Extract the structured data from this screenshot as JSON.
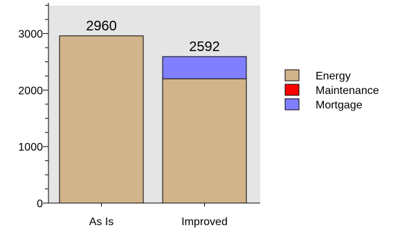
{
  "chart_data": {
    "type": "bar",
    "stacked": true,
    "categories": [
      "As Is",
      "Improved"
    ],
    "series": [
      {
        "name": "Energy",
        "color": "#d2b48c",
        "values": [
          2960,
          2200
        ]
      },
      {
        "name": "Maintenance",
        "color": "#ff0000",
        "values": [
          0,
          0
        ]
      },
      {
        "name": "Mortgage",
        "color": "#8080ff",
        "values": [
          0,
          392
        ]
      }
    ],
    "totals": [
      "2960",
      "2592"
    ],
    "yticks": [
      "0",
      "1000",
      "2000",
      "3000"
    ],
    "ylim": [
      0,
      3500
    ],
    "grid": false,
    "legend_position": "right",
    "plot_background": "#e5e5e5"
  }
}
